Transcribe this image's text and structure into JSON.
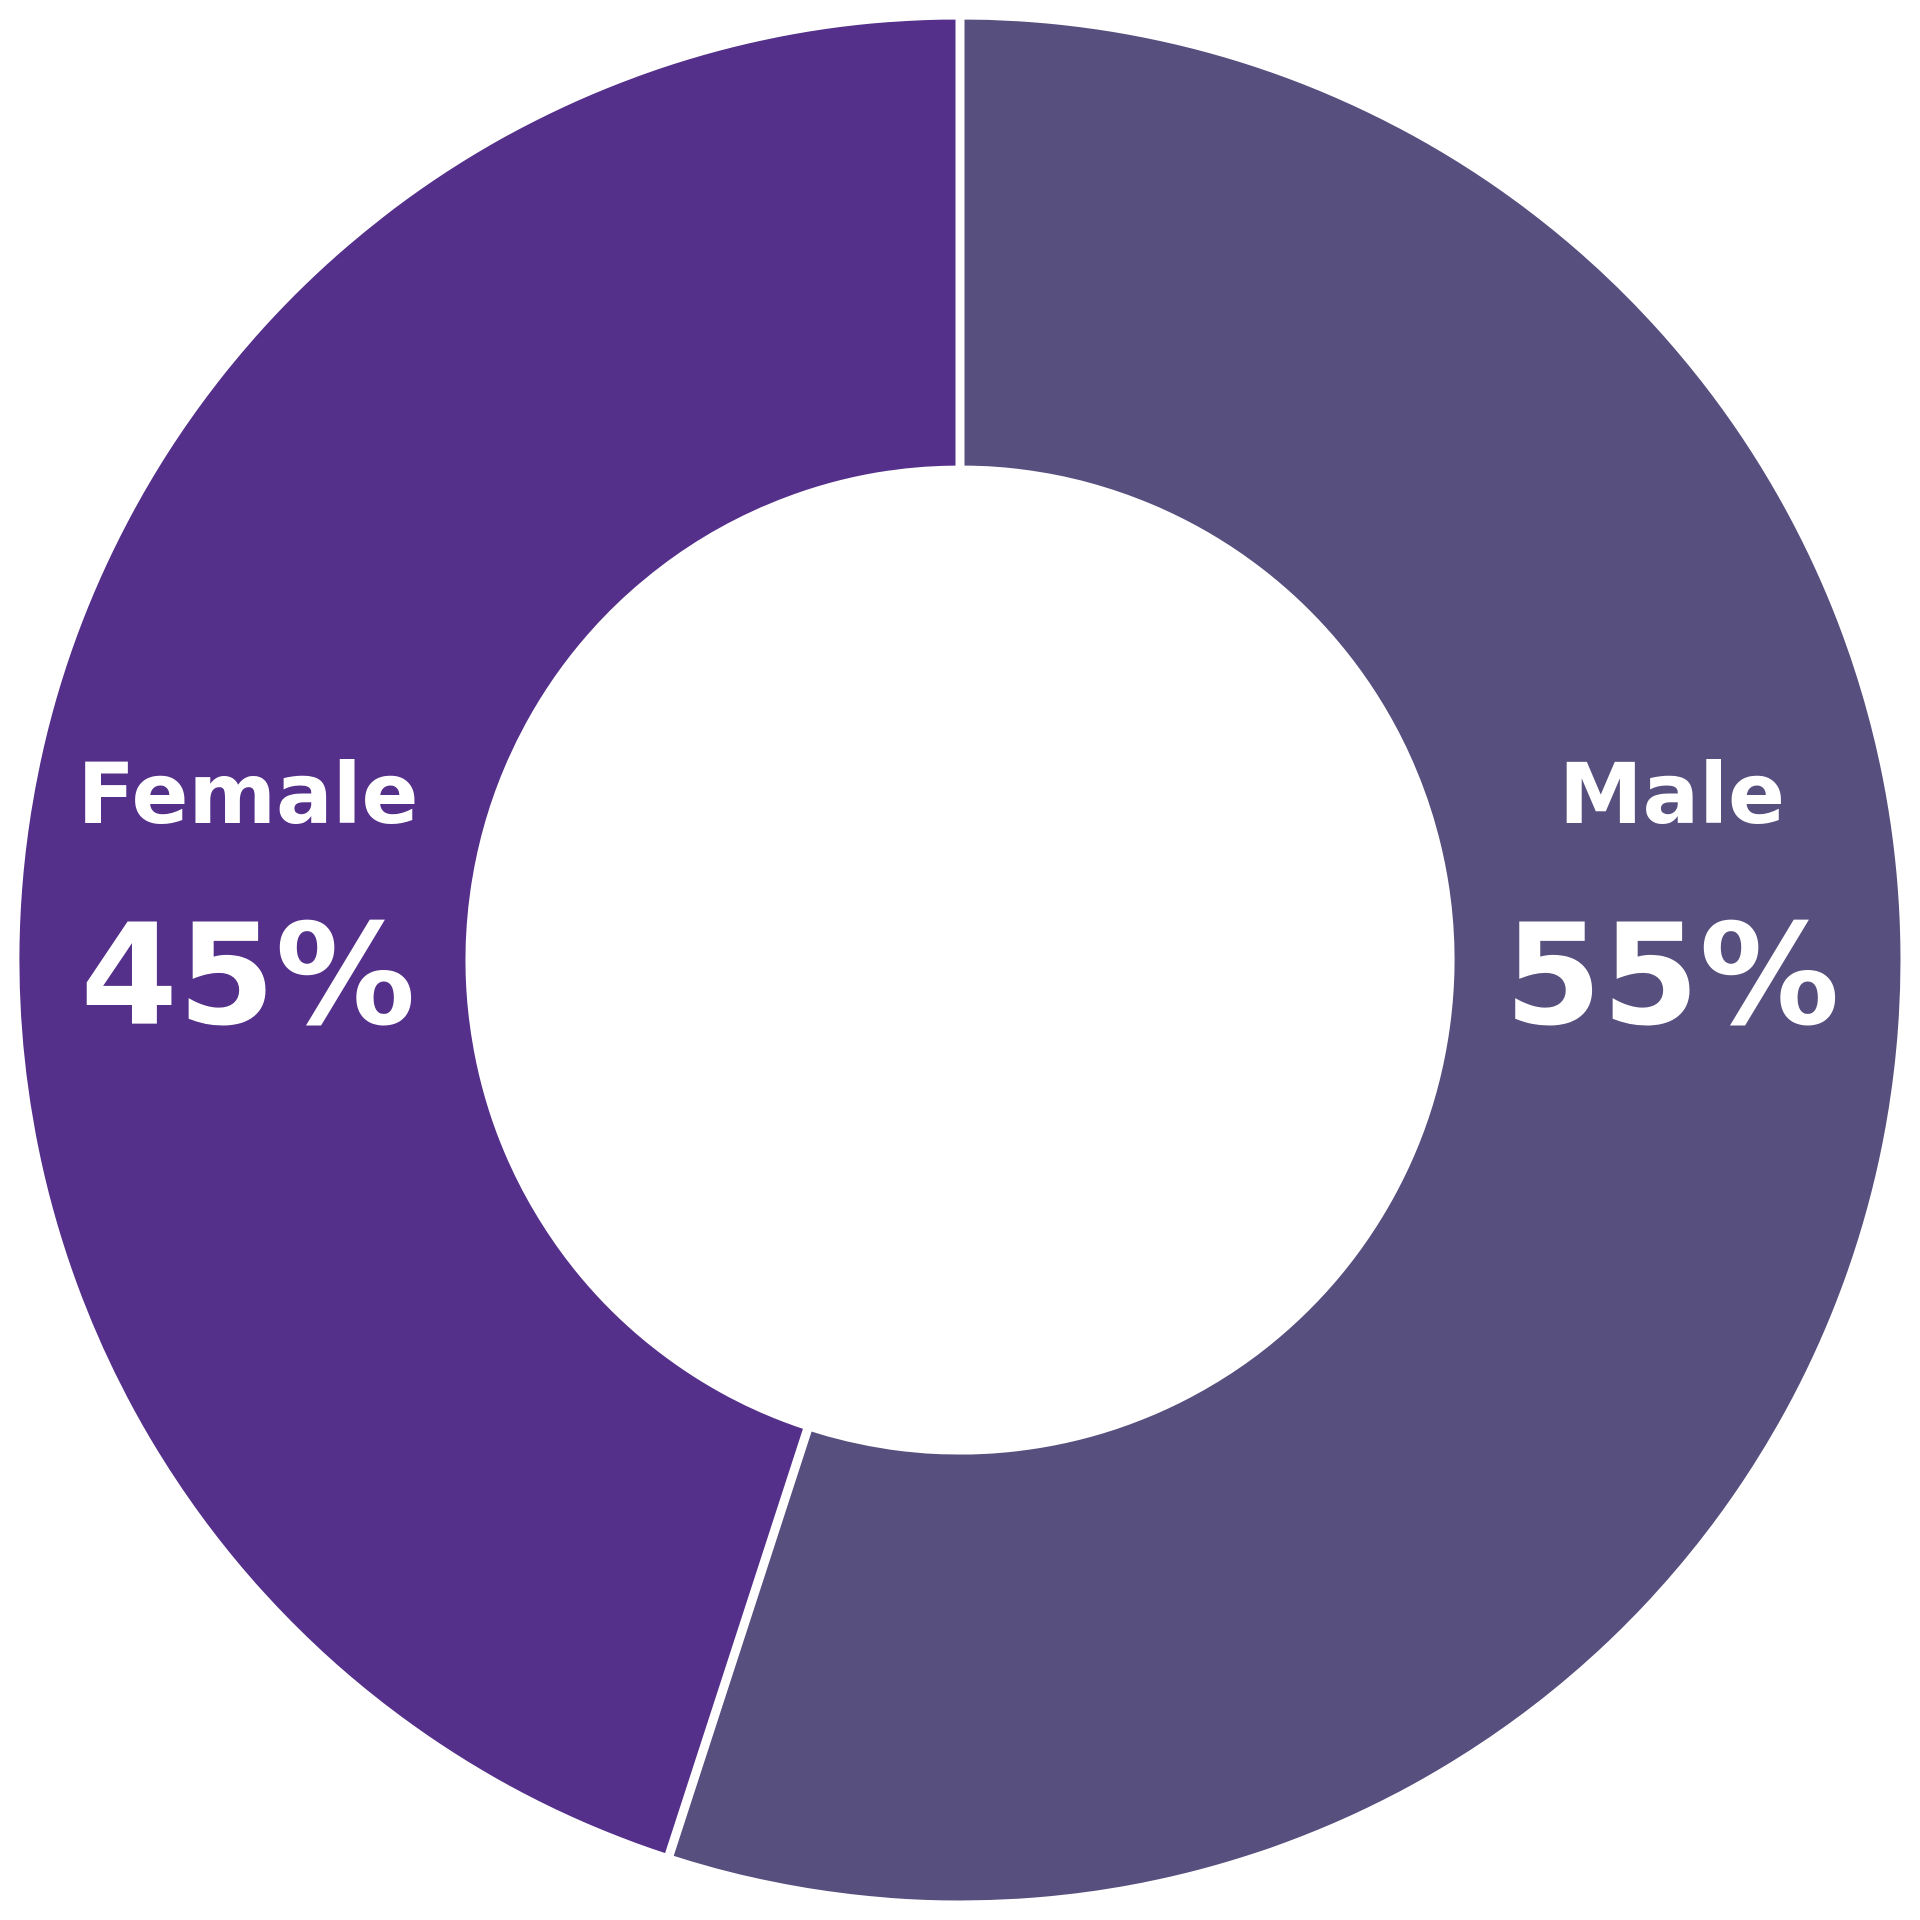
{
  "chart_data": {
    "type": "donut",
    "categories": [
      "Male",
      "Female"
    ],
    "values": [
      55,
      45
    ],
    "value_labels": [
      "55%",
      "45%"
    ],
    "colors": [
      "#57507e",
      "#54308a"
    ]
  }
}
